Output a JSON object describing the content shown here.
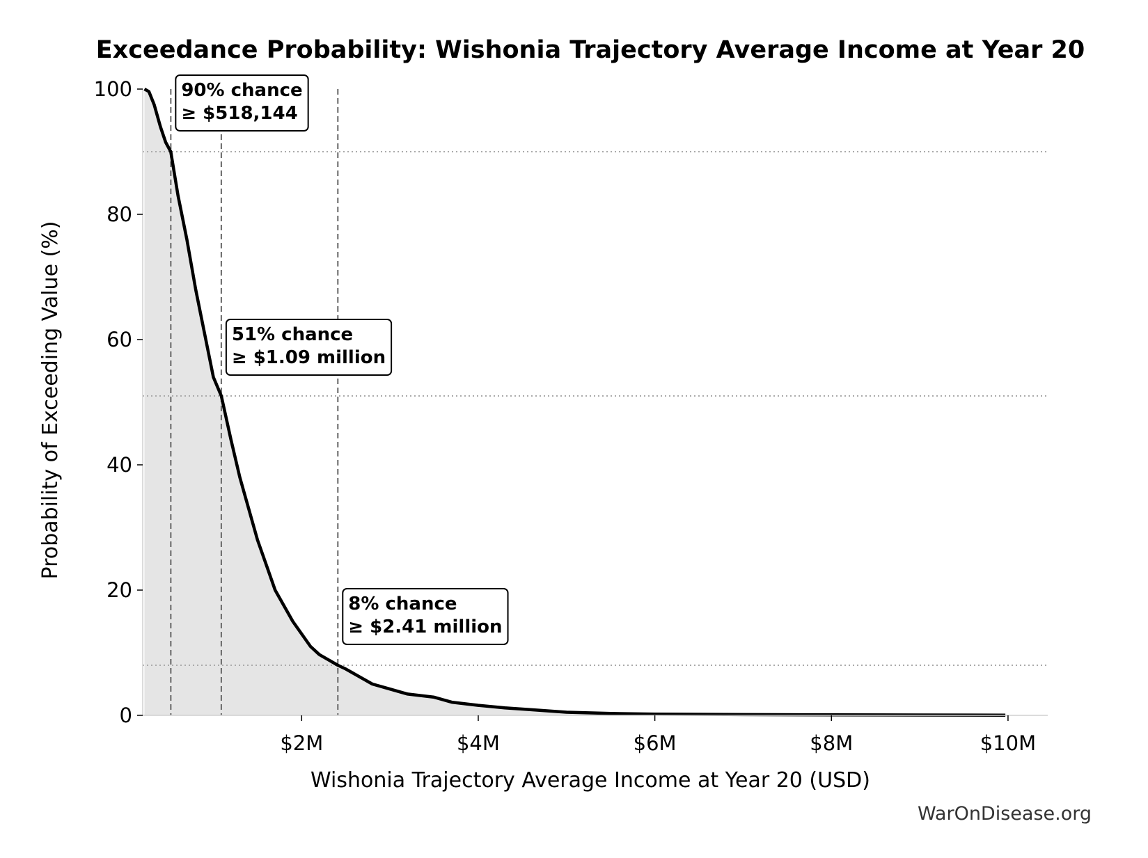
{
  "chart_data": {
    "type": "area",
    "title": "Exceedance Probability: Wishonia Trajectory Average Income at Year 20",
    "xlabel": "Wishonia Trajectory Average Income at Year 20 (USD)",
    "ylabel": "Probability of Exceeding Value (%)",
    "xlim": [
      200000,
      10450000
    ],
    "ylim": [
      0,
      100
    ],
    "x_ticks": [
      {
        "value": 2000000,
        "label": "$2M"
      },
      {
        "value": 4000000,
        "label": "$4M"
      },
      {
        "value": 6000000,
        "label": "$6M"
      },
      {
        "value": 8000000,
        "label": "$8M"
      },
      {
        "value": 10000000,
        "label": "$10M"
      }
    ],
    "y_ticks": [
      0,
      20,
      40,
      60,
      80,
      100
    ],
    "grid": false,
    "fill_color": "#e5e5e5",
    "line_color": "#000000",
    "series": [
      {
        "x": [
          220000,
          270000,
          330000,
          400000,
          460000,
          518144,
          600000,
          700000,
          800000,
          900000,
          1000000,
          1090000,
          1200000,
          1300000,
          1400000,
          1500000,
          1600000,
          1700000,
          1800000,
          1900000,
          2000000,
          2100000,
          2200000,
          2300000,
          2410000,
          2500000,
          2650000,
          2800000,
          3000000,
          3200000,
          3500000,
          3700000,
          4000000,
          4300000,
          4600000,
          5000000,
          5500000,
          6000000,
          7000000,
          8000000,
          9000000,
          9970000
        ],
        "y": [
          100,
          99.6,
          97.5,
          94,
          91.5,
          90,
          83,
          76,
          68,
          61,
          54,
          51,
          44,
          38,
          33,
          28,
          24,
          20,
          17.5,
          15,
          13,
          11,
          9.7,
          8.9,
          8,
          7.4,
          6.2,
          5,
          4.2,
          3.4,
          2.9,
          2.1,
          1.6,
          1.2,
          0.9,
          0.5,
          0.3,
          0.2,
          0.12,
          0.08,
          0.05,
          0.03
        ]
      }
    ],
    "reference_lines": [
      {
        "x": 518144,
        "y": 90,
        "label_line1": "90% chance",
        "label_line2": "≥ $518,144"
      },
      {
        "x": 1090000,
        "y": 51,
        "label_line1": "51% chance",
        "label_line2": "≥ $1.09 million"
      },
      {
        "x": 2410000,
        "y": 8,
        "label_line1": "8% chance",
        "label_line2": "≥ $2.41 million"
      }
    ],
    "annotations_style": {
      "box_fill": "#ffffff",
      "box_stroke": "#000000",
      "ref_line_color": "#666666",
      "hline_color": "#aaaaaa"
    }
  },
  "watermark": "WarOnDisease.org"
}
